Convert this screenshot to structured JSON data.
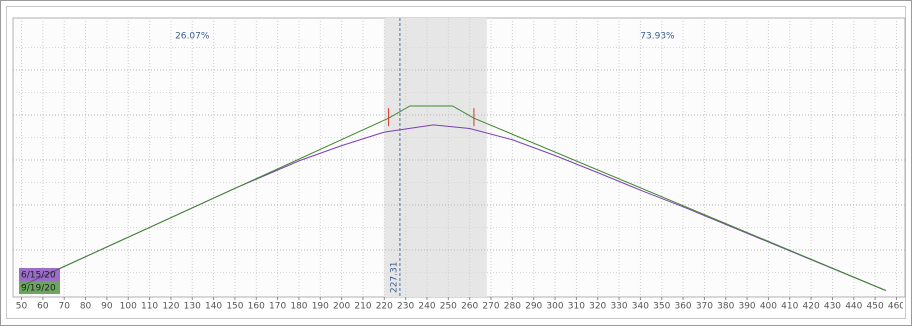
{
  "chart_data": {
    "type": "line",
    "xlim": [
      46,
      464
    ],
    "xticks": [
      50,
      60,
      70,
      80,
      90,
      100,
      110,
      120,
      130,
      140,
      150,
      160,
      170,
      180,
      190,
      200,
      210,
      220,
      230,
      240,
      250,
      260,
      270,
      280,
      290,
      300,
      310,
      320,
      330,
      340,
      350,
      360,
      370,
      380,
      390,
      400,
      410,
      420,
      430,
      440,
      450,
      460
    ],
    "ylim": [
      0,
      6
    ],
    "yticks": [
      0.5,
      1,
      1.5,
      2,
      2.5,
      3,
      3.5,
      4,
      4.5,
      5,
      5.5
    ],
    "grid": true,
    "shade": [
      220,
      268
    ],
    "vline": 227.31,
    "markers": [
      222,
      262
    ],
    "annotations": [
      {
        "text": "26.07%",
        "x": 130
      },
      {
        "text": "73.93%",
        "x": 348
      }
    ],
    "series": [
      {
        "name": "6/15/20",
        "color": "#7b3fb5",
        "x": [
          50,
          150,
          180,
          200,
          220,
          243,
          260,
          280,
          300,
          320,
          340,
          360,
          455
        ],
        "values": [
          0.2,
          2.37,
          2.98,
          3.32,
          3.62,
          3.78,
          3.7,
          3.45,
          3.1,
          2.72,
          2.33,
          1.96,
          0.1
        ]
      },
      {
        "name": "9/19/20",
        "color": "#3e8a2c",
        "x": [
          50,
          222,
          232,
          252,
          262,
          455
        ],
        "values": [
          0.2,
          3.93,
          4.2,
          4.2,
          3.93,
          0.1
        ]
      }
    ]
  }
}
